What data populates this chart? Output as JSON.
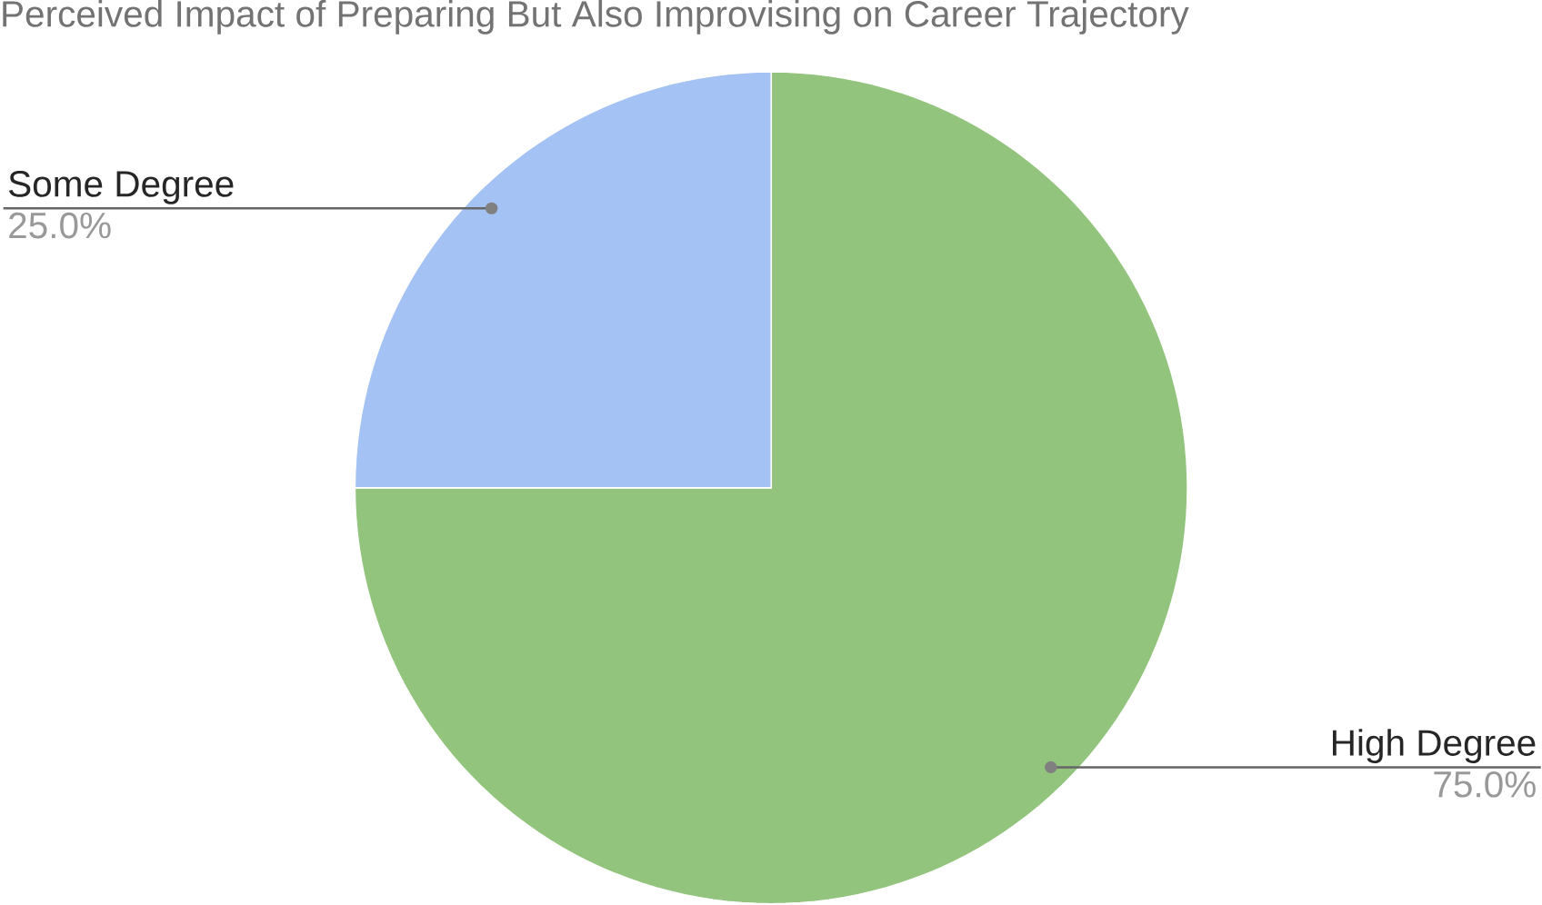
{
  "chart_data": {
    "type": "pie",
    "title": "Perceived Impact of Preparing But Also Improvising on Career Trajectory",
    "categories": [
      "High Degree",
      "Some Degree"
    ],
    "values": [
      75,
      25
    ],
    "colors": [
      "#93c47d",
      "#a4c2f4"
    ],
    "value_labels": [
      "75.0%",
      "25.0%"
    ]
  }
}
